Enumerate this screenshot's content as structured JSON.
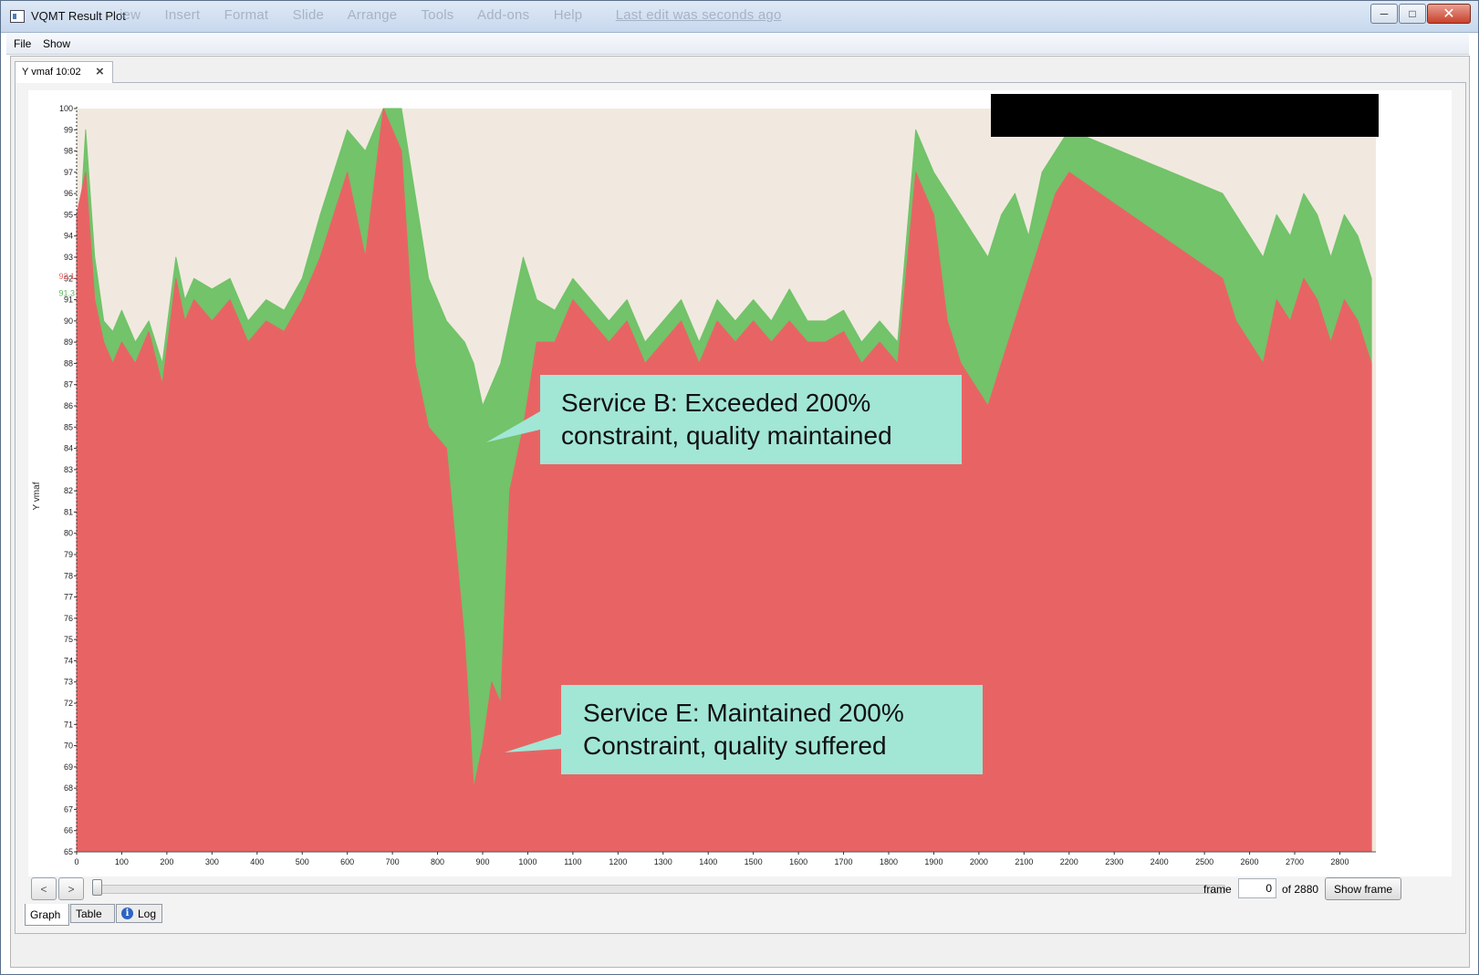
{
  "window": {
    "title": "VQMT Result Plot",
    "ghost_menu": [
      "iew",
      "Insert",
      "Format",
      "Slide",
      "Arrange",
      "Tools",
      "Add-ons",
      "Help"
    ],
    "ghost_link": "Last edit was seconds ago"
  },
  "menubar": {
    "file_label": "File",
    "show_label": "Show"
  },
  "doc_tab": {
    "label": "Y vmaf 10:02"
  },
  "annotations": {
    "callout_b_line1": "Service B: Exceeded 200%",
    "callout_b_line2": "constraint, quality maintained",
    "callout_e_line1": "Service E: Maintained 200%",
    "callout_e_line2": "Constraint, quality suffered"
  },
  "controls": {
    "prev_label": "<",
    "next_label": ">",
    "frame_label": "frame",
    "frame_value": "0",
    "of_label": "of 2880",
    "show_frame_label": "Show frame"
  },
  "bottom_tabs": {
    "graph": "Graph",
    "table": "Table",
    "log": "Log"
  },
  "colors": {
    "green_series": "#72c36a",
    "red_series": "#e86464",
    "plot_fill": "#f1e9df",
    "callout": "#a2e6d6"
  },
  "chart_data": {
    "type": "area",
    "ylabel": "Y vmaf",
    "xlabel": "",
    "xlim": [
      0,
      2880
    ],
    "ylim": [
      65,
      100
    ],
    "x_ticks": [
      0,
      100,
      200,
      300,
      400,
      500,
      600,
      700,
      800,
      900,
      1000,
      1100,
      1200,
      1300,
      1400,
      1500,
      1600,
      1700,
      1800,
      1900,
      2000,
      2100,
      2200,
      2300,
      2400,
      2500,
      2600,
      2700,
      2800
    ],
    "y_ticks": [
      65,
      66,
      67,
      68,
      69,
      70,
      71,
      72,
      73,
      74,
      75,
      76,
      77,
      78,
      79,
      80,
      81,
      82,
      83,
      84,
      85,
      86,
      87,
      88,
      89,
      90,
      91,
      92,
      93,
      94,
      95,
      96,
      97,
      98,
      99,
      100
    ],
    "y_markers": [
      {
        "label": "92.1",
        "value": 92.1,
        "color": "#e86464"
      },
      {
        "label": "91.3",
        "value": 91.3,
        "color": "#5cb85c"
      }
    ],
    "series": [
      {
        "color": "#72c36a",
        "x": [
          0,
          20,
          40,
          60,
          80,
          100,
          130,
          160,
          190,
          220,
          240,
          260,
          300,
          340,
          380,
          420,
          460,
          500,
          540,
          570,
          600,
          640,
          680,
          720,
          750,
          780,
          820,
          860,
          880,
          900,
          920,
          940,
          960,
          990,
          1020,
          1060,
          1100,
          1140,
          1180,
          1220,
          1260,
          1300,
          1340,
          1380,
          1420,
          1460,
          1500,
          1540,
          1580,
          1620,
          1660,
          1700,
          1740,
          1780,
          1820,
          1860,
          1900,
          1930,
          1960,
          1990,
          2020,
          2050,
          2080,
          2110,
          2140,
          2170,
          2200,
          2540,
          2570,
          2600,
          2630,
          2660,
          2690,
          2720,
          2750,
          2780,
          2810,
          2840,
          2870
        ],
        "y": [
          92,
          99,
          93,
          90,
          89.5,
          90.5,
          89,
          90,
          88,
          93,
          91,
          92,
          91.5,
          92,
          90,
          91,
          90.5,
          92,
          95,
          97,
          99,
          98,
          100,
          100,
          96,
          92,
          90,
          89,
          88,
          86,
          87,
          88,
          90,
          93,
          91,
          90.5,
          92,
          91,
          90,
          91,
          89,
          90,
          91,
          89,
          91,
          90,
          91,
          90,
          91.5,
          90,
          90,
          90.5,
          89,
          90,
          89,
          99,
          97,
          96,
          95,
          94,
          93,
          95,
          96,
          94,
          97,
          98,
          99,
          96,
          95,
          94,
          93,
          95,
          94,
          96,
          95,
          93,
          95,
          94,
          92
        ]
      },
      {
        "color": "#e86464",
        "x": [
          0,
          20,
          40,
          60,
          80,
          100,
          130,
          160,
          190,
          220,
          240,
          260,
          300,
          340,
          380,
          420,
          460,
          500,
          540,
          570,
          600,
          640,
          680,
          720,
          750,
          780,
          820,
          860,
          880,
          900,
          920,
          940,
          960,
          990,
          1020,
          1060,
          1100,
          1140,
          1180,
          1220,
          1260,
          1300,
          1340,
          1380,
          1420,
          1460,
          1500,
          1540,
          1580,
          1620,
          1660,
          1700,
          1740,
          1780,
          1820,
          1860,
          1900,
          1930,
          1960,
          1990,
          2020,
          2050,
          2080,
          2110,
          2140,
          2170,
          2200,
          2540,
          2570,
          2600,
          2630,
          2660,
          2690,
          2720,
          2750,
          2780,
          2810,
          2840,
          2870
        ],
        "y": [
          95,
          97,
          91,
          89,
          88,
          89,
          88,
          89.5,
          87,
          92,
          90,
          91,
          90,
          91,
          89,
          90,
          89.5,
          91,
          93,
          95,
          97,
          93,
          100,
          98,
          88,
          85,
          84,
          75,
          68,
          70,
          73,
          72,
          82,
          85,
          89,
          89,
          91,
          90,
          89,
          90,
          88,
          89,
          90,
          88,
          90,
          89,
          90,
          89,
          90,
          89,
          89,
          89.5,
          88,
          89,
          88,
          97,
          95,
          90,
          88,
          87,
          86,
          88,
          90,
          92,
          94,
          96,
          97,
          92,
          90,
          89,
          88,
          91,
          90,
          92,
          91,
          89,
          91,
          90,
          88
        ]
      }
    ]
  }
}
